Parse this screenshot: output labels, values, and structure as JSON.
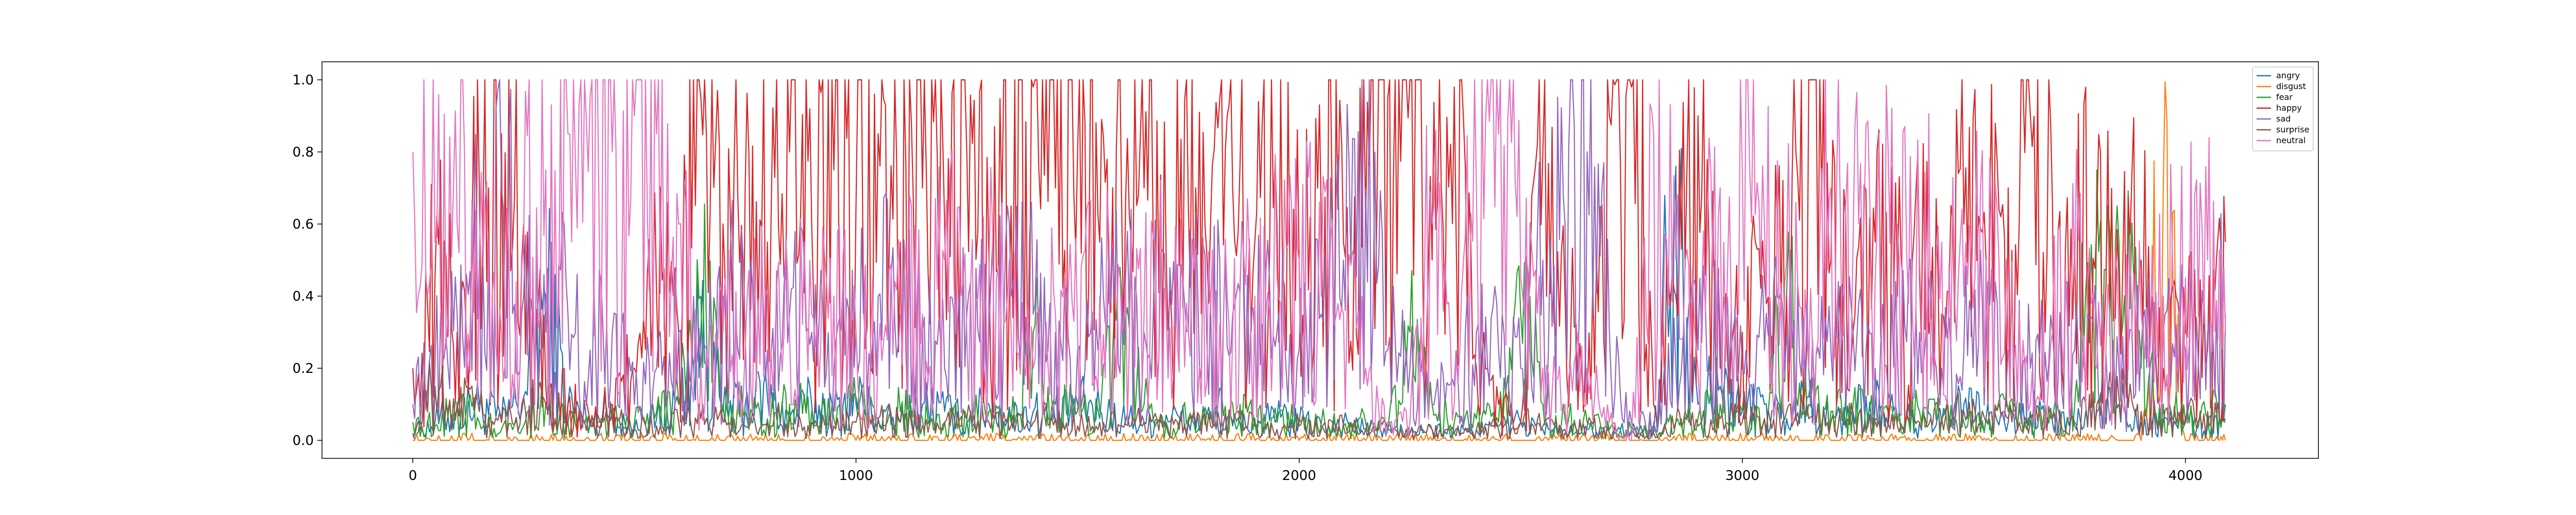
{
  "chart_data": {
    "type": "line",
    "title": "",
    "xlabel": "",
    "ylabel": "",
    "xlim": [
      -205,
      4300
    ],
    "ylim": [
      -0.05,
      1.05
    ],
    "x_ticks": [
      0,
      1000,
      2000,
      3000,
      4000
    ],
    "x_tick_labels": [
      "0",
      "1000",
      "2000",
      "3000",
      "4000"
    ],
    "y_ticks": [
      0.0,
      0.2,
      0.4,
      0.6,
      0.8,
      1.0
    ],
    "y_tick_labels": [
      "0.0",
      "0.2",
      "0.4",
      "0.6",
      "0.8",
      "1.0"
    ],
    "grid": false,
    "legend_position": "top-right",
    "x_samples": [
      0,
      50,
      100,
      150,
      200,
      250,
      300,
      350,
      400,
      450,
      500,
      550,
      600,
      650,
      700,
      750,
      800,
      850,
      900,
      950,
      1000,
      1050,
      1100,
      1150,
      1200,
      1250,
      1300,
      1350,
      1400,
      1450,
      1500,
      1550,
      1600,
      1650,
      1700,
      1750,
      1800,
      1850,
      1900,
      1950,
      2000,
      2050,
      2100,
      2150,
      2200,
      2250,
      2300,
      2350,
      2400,
      2450,
      2500,
      2550,
      2600,
      2650,
      2700,
      2750,
      2800,
      2850,
      2900,
      2950,
      3000,
      3050,
      3100,
      3150,
      3200,
      3250,
      3300,
      3350,
      3400,
      3450,
      3500,
      3550,
      3600,
      3650,
      3700,
      3750,
      3800,
      3850,
      3900,
      3950,
      4000,
      4050,
      4090
    ],
    "series": [
      {
        "name": "angry",
        "color": "#1f77b4",
        "values": [
          0.02,
          0.05,
          0.08,
          0.1,
          0.06,
          0.12,
          0.4,
          0.1,
          0.05,
          0.08,
          0.03,
          0.06,
          0.1,
          0.3,
          0.08,
          0.1,
          0.12,
          0.06,
          0.1,
          0.08,
          0.12,
          0.06,
          0.05,
          0.1,
          0.08,
          0.05,
          0.1,
          0.06,
          0.08,
          0.05,
          0.1,
          0.08,
          0.06,
          0.05,
          0.07,
          0.05,
          0.06,
          0.04,
          0.05,
          0.06,
          0.05,
          0.04,
          0.05,
          0.03,
          0.03,
          0.02,
          0.03,
          0.02,
          0.03,
          0.04,
          0.05,
          0.03,
          0.02,
          0.03,
          0.02,
          0.03,
          0.02,
          0.76,
          0.1,
          0.15,
          0.08,
          0.1,
          0.06,
          0.12,
          0.05,
          0.08,
          0.1,
          0.06,
          0.05,
          0.05,
          0.1,
          0.06,
          0.05,
          0.08,
          0.05,
          0.04,
          0.08,
          0.1,
          0.05,
          0.06,
          0.05,
          0.04,
          0.05
        ]
      },
      {
        "name": "disgust",
        "color": "#ff7f0e",
        "values": [
          0.0,
          0.0,
          0.0,
          0.0,
          0.0,
          0.0,
          0.0,
          0.0,
          0.0,
          0.0,
          0.0,
          0.0,
          0.0,
          0.0,
          0.0,
          0.0,
          0.0,
          0.0,
          0.0,
          0.0,
          0.0,
          0.0,
          0.0,
          0.0,
          0.0,
          0.0,
          0.0,
          0.0,
          0.0,
          0.0,
          0.0,
          0.0,
          0.0,
          0.0,
          0.0,
          0.0,
          0.0,
          0.0,
          0.0,
          0.0,
          0.0,
          0.0,
          0.0,
          0.0,
          0.0,
          0.0,
          0.0,
          0.0,
          0.0,
          0.0,
          0.0,
          0.0,
          0.0,
          0.0,
          0.0,
          0.0,
          0.0,
          0.0,
          0.0,
          0.0,
          0.0,
          0.0,
          0.0,
          0.0,
          0.0,
          0.0,
          0.0,
          0.0,
          0.0,
          0.0,
          0.0,
          0.0,
          0.0,
          0.0,
          0.0,
          0.0,
          0.0,
          0.0,
          0.0,
          0.7,
          0.0,
          0.0,
          0.0
        ]
      },
      {
        "name": "fear",
        "color": "#2ca02c",
        "values": [
          0.05,
          0.04,
          0.1,
          0.05,
          0.03,
          0.04,
          0.1,
          0.05,
          0.04,
          0.06,
          0.05,
          0.08,
          0.1,
          0.4,
          0.1,
          0.08,
          0.06,
          0.1,
          0.08,
          0.06,
          0.1,
          0.05,
          0.08,
          0.06,
          0.05,
          0.06,
          0.08,
          0.05,
          0.3,
          0.1,
          0.08,
          0.06,
          0.4,
          0.1,
          0.05,
          0.06,
          0.08,
          0.1,
          0.06,
          0.05,
          0.06,
          0.05,
          0.04,
          0.05,
          0.03,
          0.3,
          0.1,
          0.05,
          0.06,
          0.05,
          0.35,
          0.1,
          0.06,
          0.05,
          0.03,
          0.03,
          0.03,
          0.05,
          0.06,
          0.1,
          0.08,
          0.06,
          0.4,
          0.1,
          0.08,
          0.1,
          0.06,
          0.05,
          0.08,
          0.06,
          0.05,
          0.06,
          0.08,
          0.05,
          0.06,
          0.1,
          0.75,
          0.55,
          0.2,
          0.1,
          0.05,
          0.06,
          0.1
        ]
      },
      {
        "name": "happy",
        "color": "#d62728",
        "values": [
          0.2,
          0.45,
          0.3,
          0.7,
          0.85,
          0.6,
          0.15,
          0.1,
          0.05,
          0.1,
          0.2,
          0.4,
          0.3,
          0.95,
          0.6,
          0.7,
          0.55,
          0.8,
          0.6,
          0.75,
          0.65,
          0.85,
          0.55,
          0.7,
          0.6,
          0.8,
          0.5,
          0.65,
          0.98,
          0.7,
          0.8,
          0.55,
          0.6,
          0.7,
          0.5,
          0.65,
          0.6,
          0.7,
          0.55,
          0.6,
          0.5,
          0.6,
          0.55,
          0.6,
          0.95,
          1.0,
          0.5,
          0.98,
          0.2,
          0.1,
          0.05,
          0.8,
          0.4,
          0.1,
          0.9,
          0.98,
          0.1,
          0.4,
          0.9,
          0.2,
          0.3,
          0.45,
          0.4,
          1.0,
          0.5,
          0.3,
          0.55,
          0.4,
          0.45,
          0.35,
          0.6,
          0.5,
          0.7,
          0.9,
          0.65,
          0.55,
          0.6,
          0.45,
          0.5,
          0.2,
          0.3,
          0.25,
          0.55
        ]
      },
      {
        "name": "sad",
        "color": "#9467bd",
        "values": [
          0.1,
          0.2,
          0.35,
          0.5,
          0.7,
          0.4,
          0.3,
          0.35,
          0.25,
          0.3,
          0.1,
          0.2,
          0.3,
          0.2,
          0.4,
          0.3,
          0.25,
          0.35,
          0.3,
          0.2,
          0.3,
          0.4,
          0.35,
          0.3,
          0.2,
          0.35,
          0.3,
          0.4,
          0.35,
          0.3,
          0.25,
          0.3,
          0.4,
          0.3,
          0.35,
          0.3,
          0.4,
          0.35,
          0.3,
          0.3,
          0.25,
          0.35,
          0.5,
          0.7,
          0.25,
          0.2,
          0.1,
          0.15,
          0.3,
          0.25,
          0.2,
          0.5,
          0.6,
          0.8,
          0.3,
          0.05,
          0.05,
          0.2,
          0.25,
          0.3,
          0.2,
          0.25,
          0.3,
          0.2,
          0.25,
          0.3,
          0.2,
          0.25,
          0.3,
          0.2,
          0.25,
          0.3,
          0.25,
          0.2,
          0.3,
          0.25,
          0.3,
          0.2,
          0.25,
          0.3,
          0.25,
          0.3,
          0.35
        ]
      },
      {
        "name": "surprise",
        "color": "#8c564b",
        "values": [
          0.01,
          0.15,
          0.1,
          0.08,
          0.05,
          0.12,
          0.1,
          0.05,
          0.04,
          0.06,
          0.03,
          0.04,
          0.05,
          0.06,
          0.05,
          0.04,
          0.05,
          0.06,
          0.05,
          0.04,
          0.05,
          0.06,
          0.05,
          0.04,
          0.05,
          0.06,
          0.05,
          0.04,
          0.05,
          0.06,
          0.04,
          0.05,
          0.04,
          0.05,
          0.04,
          0.05,
          0.04,
          0.05,
          0.04,
          0.03,
          0.04,
          0.03,
          0.04,
          0.03,
          0.03,
          0.02,
          0.03,
          0.02,
          0.03,
          0.03,
          0.05,
          0.04,
          0.03,
          0.04,
          0.02,
          0.02,
          0.02,
          0.05,
          0.04,
          0.06,
          0.05,
          0.06,
          0.08,
          0.06,
          0.05,
          0.06,
          0.05,
          0.04,
          0.05,
          0.06,
          0.08,
          0.05,
          0.06,
          0.05,
          0.06,
          0.05,
          0.1,
          0.12,
          0.08,
          0.05,
          0.06,
          0.08,
          0.06
        ]
      },
      {
        "name": "neutral",
        "color": "#e377c2",
        "values": [
          0.8,
          0.55,
          0.6,
          0.5,
          0.3,
          0.55,
          0.75,
          0.85,
          0.95,
          0.8,
          0.9,
          0.85,
          0.6,
          0.2,
          0.3,
          0.25,
          0.4,
          0.3,
          0.35,
          0.4,
          0.3,
          0.25,
          0.4,
          0.35,
          0.5,
          0.3,
          0.45,
          0.3,
          0.2,
          0.35,
          0.3,
          0.4,
          0.3,
          0.35,
          0.4,
          0.3,
          0.35,
          0.3,
          0.4,
          0.45,
          0.5,
          0.4,
          0.35,
          0.2,
          0.05,
          0.05,
          0.6,
          0.1,
          0.7,
          0.85,
          0.45,
          0.2,
          0.1,
          0.2,
          0.05,
          0.0,
          0.85,
          0.5,
          0.2,
          0.7,
          0.75,
          0.6,
          0.5,
          0.2,
          0.7,
          0.55,
          0.45,
          0.6,
          0.5,
          0.55,
          0.4,
          0.5,
          0.3,
          0.1,
          0.3,
          0.45,
          0.2,
          0.3,
          0.35,
          0.4,
          0.45,
          0.5,
          0.3
        ]
      }
    ]
  }
}
